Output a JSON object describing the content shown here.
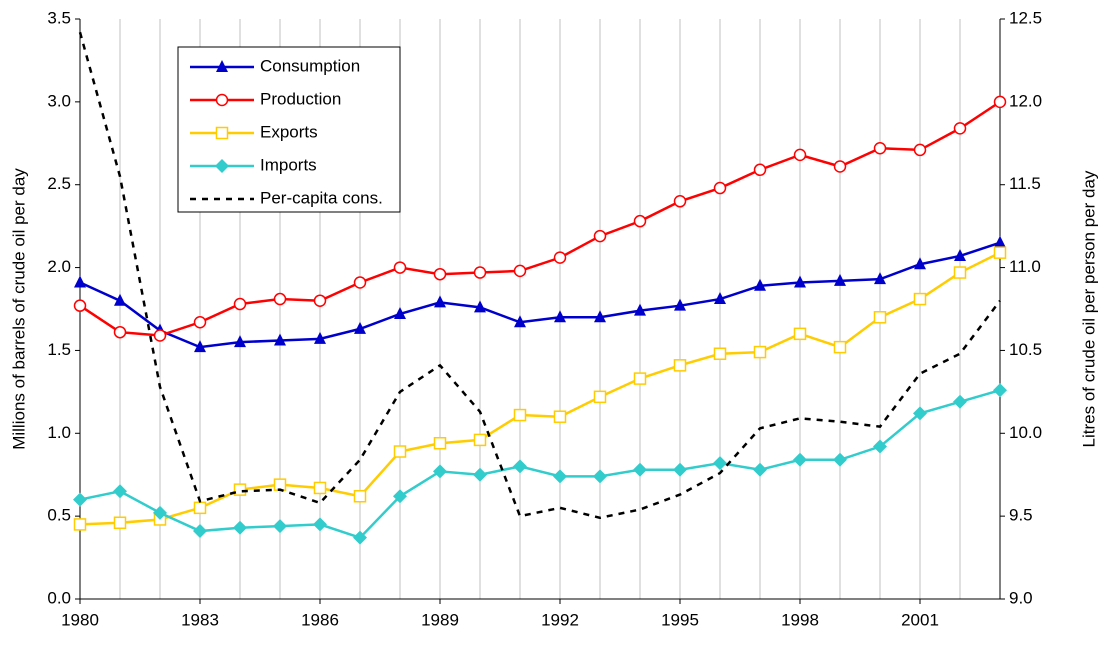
{
  "chart_data": {
    "type": "line",
    "y_label": "Millions of barrels of crude oil per day",
    "y2_label": "Litres of crude oil per person per day",
    "x": [
      1980,
      1981,
      1982,
      1983,
      1984,
      1985,
      1986,
      1987,
      1988,
      1989,
      1990,
      1991,
      1992,
      1993,
      1994,
      1995,
      1996,
      1997,
      1998,
      1999,
      2000,
      2001,
      2002,
      2003
    ],
    "xlim": [
      1980,
      2003
    ],
    "xticks": [
      1980,
      1983,
      1986,
      1989,
      1992,
      1995,
      1998,
      2001
    ],
    "ylim": [
      0,
      3.5
    ],
    "yticks": [
      {
        "value": 0,
        "label": "0.0"
      },
      0.5,
      {
        "value": 1,
        "label": "1.0"
      },
      1.5,
      {
        "value": 2,
        "label": "2.0"
      },
      2.5,
      {
        "value": 3,
        "label": "3.0"
      },
      3.5
    ],
    "y2lim": [
      9,
      12.5
    ],
    "y2ticks": [
      {
        "value": 9,
        "label": "9.0"
      },
      9.5,
      {
        "value": 10,
        "label": "10.0"
      },
      10.5,
      {
        "value": 11,
        "label": "11.0"
      },
      11.5,
      {
        "value": 12,
        "label": "12.0"
      },
      12.5
    ],
    "grid": "x",
    "legend": "upper left",
    "series": [
      {
        "name": "Consumption",
        "color": "#0000cc",
        "marker": "triangle",
        "values": [
          1.91,
          1.8,
          1.62,
          1.52,
          1.55,
          1.56,
          1.57,
          1.63,
          1.72,
          1.79,
          1.76,
          1.67,
          1.7,
          1.7,
          1.74,
          1.77,
          1.81,
          1.89,
          1.91,
          1.92,
          1.93,
          2.02,
          2.07,
          2.15
        ]
      },
      {
        "name": "Production",
        "color": "#ff0000",
        "marker": "circle",
        "values": [
          1.77,
          1.61,
          1.59,
          1.67,
          1.78,
          1.81,
          1.8,
          1.91,
          2.0,
          1.96,
          1.97,
          1.98,
          2.06,
          2.19,
          2.28,
          2.4,
          2.48,
          2.59,
          2.68,
          2.61,
          2.72,
          2.71,
          2.84,
          3.0
        ]
      },
      {
        "name": "Exports",
        "color": "#ffcc00",
        "marker": "square",
        "values": [
          0.45,
          0.46,
          0.48,
          0.55,
          0.66,
          0.69,
          0.67,
          0.62,
          0.89,
          0.94,
          0.96,
          1.11,
          1.1,
          1.22,
          1.33,
          1.41,
          1.48,
          1.49,
          1.6,
          1.52,
          1.7,
          1.81,
          1.97,
          2.09
        ]
      },
      {
        "name": "Imports",
        "color": "#33cccc",
        "marker": "diamond",
        "values": [
          0.6,
          0.65,
          0.52,
          0.41,
          0.43,
          0.44,
          0.45,
          0.37,
          0.62,
          0.77,
          0.75,
          0.8,
          0.74,
          0.74,
          0.78,
          0.78,
          0.82,
          0.78,
          0.84,
          0.84,
          0.92,
          1.12,
          1.19,
          1.26
        ]
      },
      {
        "name": "Per-capita cons.",
        "color": "#000000",
        "marker": "none",
        "dash": true,
        "axis": "y2",
        "values": [
          12.42,
          11.55,
          10.28,
          9.59,
          9.65,
          9.66,
          9.58,
          9.84,
          10.25,
          10.41,
          10.13,
          9.5,
          9.55,
          9.49,
          9.54,
          9.63,
          9.76,
          10.03,
          10.09,
          10.07,
          10.04,
          10.36,
          10.48,
          10.8
        ]
      }
    ]
  }
}
